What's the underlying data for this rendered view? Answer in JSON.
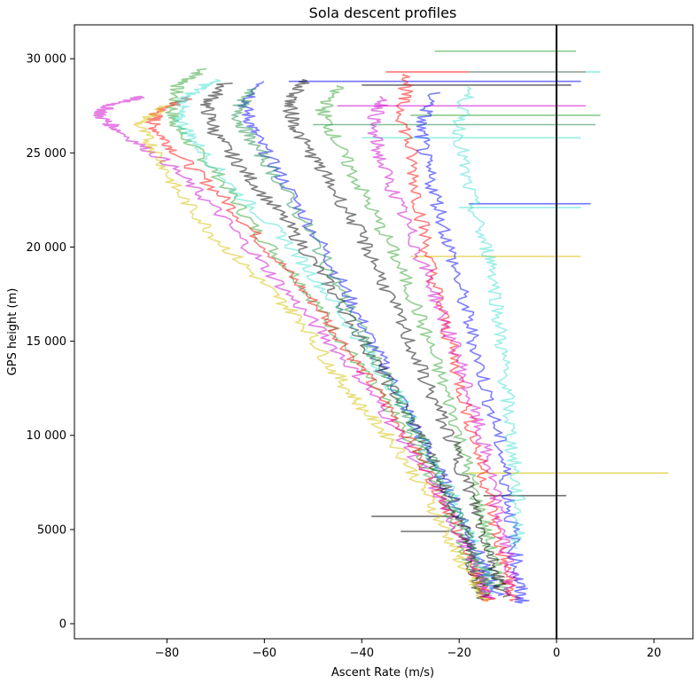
{
  "chart_data": {
    "type": "line",
    "title": "Sola descent profiles",
    "xlabel": "Ascent Rate (m/s)",
    "ylabel": "GPS height (m)",
    "xlim": [
      -99,
      28
    ],
    "ylim": [
      -800,
      31800
    ],
    "x_ticks": [
      -80,
      -60,
      -40,
      -20,
      0,
      20
    ],
    "x_tick_labels": [
      "−80",
      "−60",
      "−40",
      "−20",
      "0",
      "20"
    ],
    "y_ticks": [
      0,
      5000,
      10000,
      15000,
      20000,
      25000,
      30000
    ],
    "y_tick_labels": [
      "0",
      "5000",
      "10 000",
      "15 000",
      "20 000",
      "25 000",
      "30 000"
    ],
    "grid": false,
    "reference_line": {
      "x": 0,
      "color": "#000000"
    },
    "series_colors": [
      "#2ca02c",
      "#ff0000",
      "#0000ff",
      "#000000",
      "#40e0d0",
      "#cc00cc",
      "#d4c000",
      "#1a8c4a"
    ],
    "series": [
      {
        "color": "#2ca02c",
        "points": [
          [
            -72,
            29500
          ],
          [
            -78,
            28500
          ],
          [
            -79,
            27000
          ],
          [
            -77,
            26000
          ],
          [
            -70,
            24000
          ],
          [
            -62,
            21000
          ],
          [
            -52,
            18000
          ],
          [
            -44,
            15000
          ],
          [
            -36,
            12000
          ],
          [
            -28,
            9000
          ],
          [
            -22,
            6000
          ],
          [
            -18,
            3500
          ],
          [
            -15,
            1500
          ]
        ]
      },
      {
        "color": "#ff0000",
        "points": [
          [
            -75,
            28000
          ],
          [
            -82,
            27200
          ],
          [
            -83,
            26500
          ],
          [
            -78,
            25000
          ],
          [
            -68,
            22500
          ],
          [
            -58,
            19500
          ],
          [
            -48,
            16500
          ],
          [
            -40,
            13500
          ],
          [
            -32,
            10500
          ],
          [
            -25,
            7500
          ],
          [
            -20,
            5000
          ],
          [
            -16,
            2500
          ],
          [
            -14,
            1200
          ]
        ]
      },
      {
        "color": "#0000ff",
        "points": [
          [
            -60,
            28800
          ],
          [
            -64,
            27500
          ],
          [
            -62,
            26000
          ],
          [
            -56,
            23500
          ],
          [
            -48,
            20000
          ],
          [
            -42,
            17000
          ],
          [
            -36,
            14000
          ],
          [
            -30,
            11000
          ],
          [
            -24,
            8000
          ],
          [
            -19,
            5500
          ],
          [
            -15,
            3000
          ],
          [
            -12,
            1500
          ]
        ]
      },
      {
        "color": "#000000",
        "points": [
          [
            -68,
            28700
          ],
          [
            -72,
            27500
          ],
          [
            -70,
            26000
          ],
          [
            -64,
            24000
          ],
          [
            -56,
            21500
          ],
          [
            -48,
            18500
          ],
          [
            -42,
            16000
          ],
          [
            -35,
            13000
          ],
          [
            -28,
            10000
          ],
          [
            -23,
            7500
          ],
          [
            -19,
            5000
          ],
          [
            -17,
            2800
          ],
          [
            -15,
            1300
          ]
        ]
      },
      {
        "color": "#40e0d0",
        "points": [
          [
            -70,
            28900
          ],
          [
            -76,
            28000
          ],
          [
            -78,
            27000
          ],
          [
            -74,
            25500
          ],
          [
            -66,
            23000
          ],
          [
            -56,
            20500
          ],
          [
            -47,
            17500
          ],
          [
            -39,
            14500
          ],
          [
            -31,
            11500
          ],
          [
            -25,
            8500
          ],
          [
            -20,
            6000
          ],
          [
            -16,
            3500
          ],
          [
            -13,
            1600
          ]
        ]
      },
      {
        "color": "#cc00cc",
        "points": [
          [
            -85,
            28000
          ],
          [
            -92,
            27500
          ],
          [
            -94,
            27000
          ],
          [
            -90,
            26200
          ],
          [
            -80,
            24500
          ],
          [
            -70,
            22000
          ],
          [
            -60,
            19000
          ],
          [
            -50,
            16000
          ],
          [
            -40,
            13000
          ],
          [
            -32,
            10000
          ],
          [
            -25,
            7200
          ],
          [
            -20,
            4800
          ],
          [
            -16,
            2600
          ],
          [
            -14,
            1300
          ]
        ]
      },
      {
        "color": "#d4c000",
        "points": [
          [
            -80,
            27500
          ],
          [
            -86,
            26500
          ],
          [
            -82,
            25000
          ],
          [
            -78,
            23000
          ],
          [
            -70,
            20500
          ],
          [
            -60,
            18000
          ],
          [
            -52,
            16000
          ],
          [
            -46,
            13500
          ],
          [
            -40,
            11500
          ],
          [
            -33,
            9500
          ],
          [
            -27,
            7000
          ],
          [
            -22,
            4500
          ],
          [
            -18,
            2500
          ],
          [
            -15,
            1200
          ]
        ]
      },
      {
        "color": "#1a8c4a",
        "points": [
          [
            -62,
            28400
          ],
          [
            -66,
            27200
          ],
          [
            -63,
            25800
          ],
          [
            -57,
            23500
          ],
          [
            -50,
            20500
          ],
          [
            -44,
            17500
          ],
          [
            -38,
            14500
          ],
          [
            -32,
            11500
          ],
          [
            -26,
            8800
          ],
          [
            -21,
            6200
          ],
          [
            -17,
            3800
          ],
          [
            -14,
            2000
          ]
        ]
      },
      {
        "color": "#2ca02c",
        "points": [
          [
            -45,
            28600
          ],
          [
            -48,
            27200
          ],
          [
            -45,
            25500
          ],
          [
            -40,
            23000
          ],
          [
            -34,
            20000
          ],
          [
            -29,
            17000
          ],
          [
            -25,
            14000
          ],
          [
            -21,
            11000
          ],
          [
            -18,
            8000
          ],
          [
            -15,
            5500
          ],
          [
            -13,
            3200
          ],
          [
            -11,
            1800
          ]
        ]
      },
      {
        "color": "#ff0000",
        "points": [
          [
            -30,
            29200
          ],
          [
            -32,
            27500
          ],
          [
            -30,
            25000
          ],
          [
            -28,
            22000
          ],
          [
            -26,
            19000
          ],
          [
            -23,
            16000
          ],
          [
            -20,
            13000
          ],
          [
            -17,
            10000
          ],
          [
            -14,
            7000
          ],
          [
            -12,
            4500
          ],
          [
            -10,
            2500
          ],
          [
            -9,
            1200
          ]
        ]
      },
      {
        "color": "#0000ff",
        "points": [
          [
            -25,
            28200
          ],
          [
            -28,
            26500
          ],
          [
            -27,
            24500
          ],
          [
            -24,
            22000
          ],
          [
            -21,
            19000
          ],
          [
            -18,
            16000
          ],
          [
            -15,
            13000
          ],
          [
            -12,
            10000
          ],
          [
            -10,
            7200
          ],
          [
            -9,
            4800
          ],
          [
            -8,
            2500
          ],
          [
            -7,
            1100
          ]
        ]
      },
      {
        "color": "#40e0d0",
        "points": [
          [
            -18,
            28500
          ],
          [
            -20,
            26500
          ],
          [
            -19,
            24000
          ],
          [
            -16,
            21000
          ],
          [
            -13,
            19000
          ],
          [
            -12,
            16500
          ],
          [
            -11,
            14000
          ],
          [
            -10,
            11500
          ],
          [
            -9,
            9000
          ],
          [
            -8,
            6500
          ],
          [
            -8,
            4000
          ]
        ]
      },
      {
        "color": "#000000",
        "points": [
          [
            -52,
            28900
          ],
          [
            -55,
            27500
          ],
          [
            -53,
            26000
          ],
          [
            -48,
            24000
          ],
          [
            -42,
            21500
          ],
          [
            -37,
            19000
          ],
          [
            -32,
            16000
          ],
          [
            -27,
            13000
          ],
          [
            -22,
            10000
          ],
          [
            -18,
            7200
          ],
          [
            -15,
            4800
          ],
          [
            -12,
            2600
          ],
          [
            -11,
            1400
          ]
        ]
      },
      {
        "color": "#cc00cc",
        "points": [
          [
            -35,
            28000
          ],
          [
            -38,
            26500
          ],
          [
            -36,
            24500
          ],
          [
            -32,
            22000
          ],
          [
            -28,
            19500
          ],
          [
            -24,
            16800
          ],
          [
            -20,
            14000
          ],
          [
            -17,
            11200
          ],
          [
            -14,
            8500
          ],
          [
            -12,
            5800
          ],
          [
            -10,
            3500
          ],
          [
            -9,
            1500
          ]
        ]
      }
    ],
    "horizontal_spikes": [
      {
        "color": "#2ca02c",
        "y": 30400,
        "x_from": -25,
        "x_to": 4
      },
      {
        "color": "#ff0000",
        "y": 29300,
        "x_from": -35,
        "x_to": 6
      },
      {
        "color": "#40e0d0",
        "y": 29300,
        "x_from": -18,
        "x_to": 9
      },
      {
        "color": "#0000ff",
        "y": 28800,
        "x_from": -55,
        "x_to": 5
      },
      {
        "color": "#000000",
        "y": 28600,
        "x_from": -40,
        "x_to": 3
      },
      {
        "color": "#cc00cc",
        "y": 27500,
        "x_from": -45,
        "x_to": 6
      },
      {
        "color": "#2ca02c",
        "y": 27000,
        "x_from": -30,
        "x_to": 9
      },
      {
        "color": "#1a8c4a",
        "y": 26500,
        "x_from": -50,
        "x_to": 8
      },
      {
        "color": "#40e0d0",
        "y": 25800,
        "x_from": -40,
        "x_to": 5
      },
      {
        "color": "#0000ff",
        "y": 22300,
        "x_from": -18,
        "x_to": 7
      },
      {
        "color": "#40e0d0",
        "y": 22100,
        "x_from": -20,
        "x_to": 5
      },
      {
        "color": "#d4c000",
        "y": 19500,
        "x_from": -30,
        "x_to": 5
      },
      {
        "color": "#d4c000",
        "y": 8000,
        "x_from": -18,
        "x_to": 23
      },
      {
        "color": "#000000",
        "y": 6800,
        "x_from": -15,
        "x_to": 2
      },
      {
        "color": "#000000",
        "y": 5700,
        "x_from": -38,
        "x_to": -20
      },
      {
        "color": "#000000",
        "y": 4900,
        "x_from": -32,
        "x_to": -22
      }
    ]
  }
}
